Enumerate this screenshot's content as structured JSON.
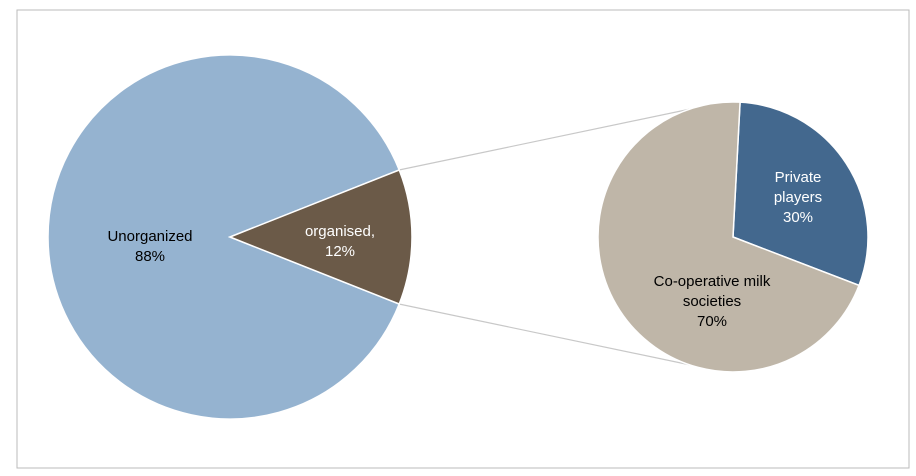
{
  "chart_data": [
    {
      "type": "pie",
      "categories": [
        "Unorganized",
        "organised,"
      ],
      "values": [
        88,
        12
      ],
      "value_labels": [
        "88%",
        "12%"
      ],
      "colors": [
        "#95b3d0",
        "#6b5a48"
      ]
    },
    {
      "type": "pie",
      "categories": [
        "Private players",
        "Co-operative milk societies"
      ],
      "values": [
        30,
        70
      ],
      "value_labels": [
        "30%",
        "70%"
      ],
      "colors": [
        "#43688e",
        "#bfb6a8"
      ]
    }
  ]
}
